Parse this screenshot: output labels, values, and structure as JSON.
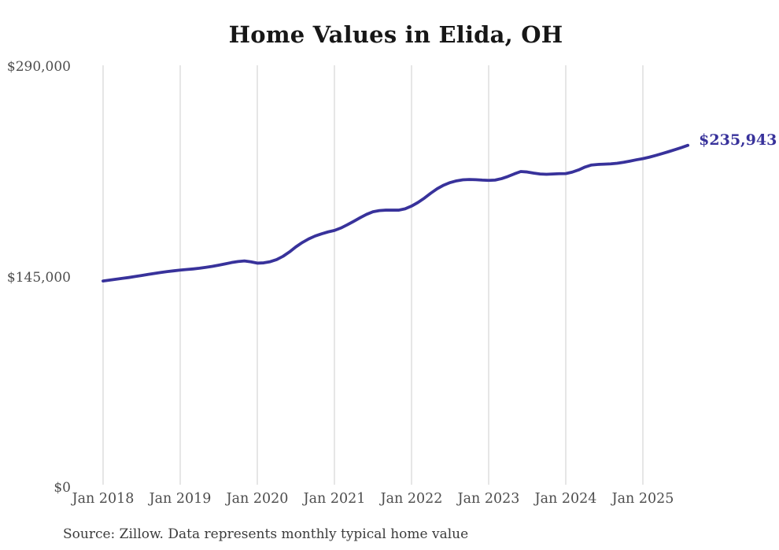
{
  "page": {
    "background": "#ffffff"
  },
  "chart_data": {
    "type": "line",
    "title": "Home Values in Elida, OH",
    "x_tick_labels": [
      "Jan 2018",
      "Jan 2019",
      "Jan 2020",
      "Jan 2021",
      "Jan 2022",
      "Jan 2023",
      "Jan 2024",
      "Jan 2025"
    ],
    "y_ticks": [
      {
        "value": 0,
        "label": "$0"
      },
      {
        "value": 145000,
        "label": "$145,000"
      },
      {
        "value": 290000,
        "label": "$290,000"
      }
    ],
    "ylim": [
      0,
      290000
    ],
    "x_start_month": "2018-01",
    "x_end_month": "2025-08",
    "months_per_x_tick": 12,
    "grid": "vertical-only",
    "legend": "none",
    "end_label": "$235,943",
    "end_value": 235943,
    "line_color": "#38329b",
    "grid_color": "#cccccc",
    "series": [
      {
        "name": "Typical home value",
        "values": [
          142500,
          143100,
          143700,
          144300,
          144900,
          145600,
          146300,
          147000,
          147700,
          148400,
          149000,
          149500,
          150000,
          150400,
          150800,
          151300,
          151900,
          152600,
          153400,
          154300,
          155200,
          155900,
          156300,
          155700,
          154800,
          155000,
          155800,
          157200,
          159500,
          162500,
          166000,
          169000,
          171500,
          173500,
          175000,
          176300,
          177300,
          179000,
          181200,
          183600,
          186100,
          188400,
          190200,
          191000,
          191300,
          191300,
          191300,
          192200,
          194100,
          196600,
          199600,
          203000,
          206100,
          208500,
          210300,
          211500,
          212200,
          212400,
          212300,
          212000,
          211800,
          212000,
          213000,
          214500,
          216300,
          217900,
          217600,
          216800,
          216200,
          216000,
          216200,
          216400,
          216500,
          217500,
          219000,
          221000,
          222400,
          222800,
          223000,
          223200,
          223600,
          224300,
          225100,
          226000,
          226800,
          227800,
          229000,
          230300,
          231600,
          233000,
          234400,
          235943
        ]
      }
    ]
  },
  "footer": {
    "source_text": "Source: Zillow. Data represents monthly typical home value"
  }
}
